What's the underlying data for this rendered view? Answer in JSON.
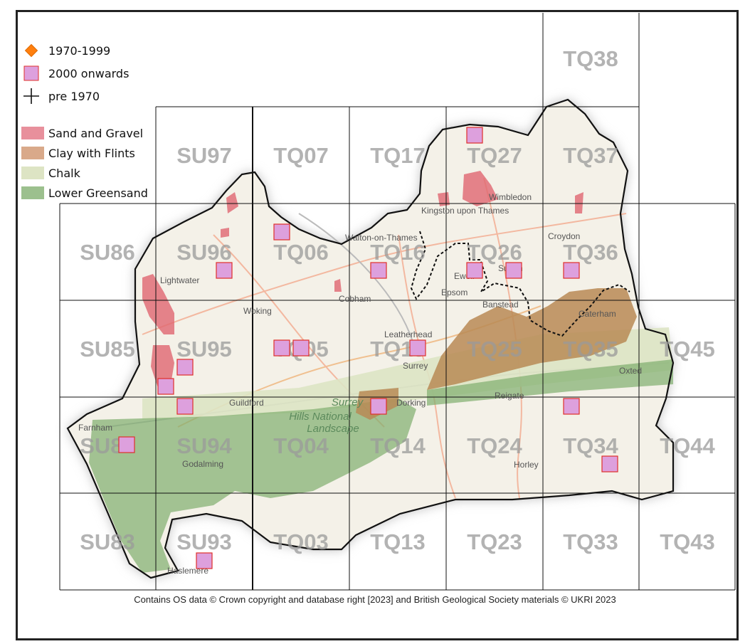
{
  "legend": {
    "points": [
      {
        "label": "1970-1999",
        "symbol": "diamond",
        "color": "#ff7f0e"
      },
      {
        "label": "2000 onwards",
        "symbol": "square",
        "color": "#dda0dd"
      },
      {
        "label": "pre 1970",
        "symbol": "cross",
        "color": "#111111"
      }
    ],
    "geology": [
      {
        "label": "Sand and Gravel",
        "color": "#e8909c"
      },
      {
        "label": "Clay with Flints",
        "color": "#d9a98a"
      },
      {
        "label": "Chalk",
        "color": "#dde4c4"
      },
      {
        "label": "Lower Greensand",
        "color": "#9cc08e"
      }
    ]
  },
  "grid_labels": {
    "row_38": [
      "TQ38"
    ],
    "row_7": [
      "SU97",
      "TQ07",
      "TQ17",
      "TQ27",
      "TQ37"
    ],
    "row_6": [
      "SU86",
      "SU96",
      "TQ06",
      "TQ16",
      "TQ26",
      "TQ36"
    ],
    "row_5": [
      "SU85",
      "SU95",
      "TQ05",
      "TQ15",
      "TQ25",
      "TQ35",
      "TQ45"
    ],
    "row_4": [
      "SU84",
      "SU94",
      "TQ04",
      "TQ14",
      "TQ24",
      "TQ34",
      "TQ44"
    ],
    "row_3": [
      "SU83",
      "SU93",
      "TQ03",
      "TQ13",
      "TQ23",
      "TQ33",
      "TQ43"
    ]
  },
  "places": [
    "Lightwater",
    "Woking",
    "Cobham",
    "Leatherhead",
    "Guildford",
    "Dorking",
    "Reigate",
    "Farnham",
    "Godalming",
    "Haslemere",
    "Horley",
    "Oxted",
    "Croydon",
    "Sutton",
    "Wimbledon",
    "Epsom",
    "Ewell",
    "Banstead",
    "Caterham",
    "Walton-on-Thames",
    "Kingston upon Thames",
    "Surrey"
  ],
  "aonb_label": [
    "Surrey",
    "Hills National",
    "Landscape"
  ],
  "markers_2000_onwards": [
    "TQ27",
    "TQ06",
    "SU96",
    "TQ16",
    "TQ26",
    "TQ26",
    "TQ36",
    "TQ05",
    "TQ05",
    "TQ15",
    "SU95",
    "SU95",
    "SU94",
    "TQ14",
    "TQ34",
    "SU84",
    "TQ34",
    "SU93"
  ],
  "colors": {
    "county_fill": "#f4f1e8",
    "boundary": "#111111",
    "grid": "#111111",
    "marker_stroke": "#e0302a"
  },
  "attribution": "Contains OS data  © Crown copyright and database right [2023] and British Geological Society materials © UKRI 2023"
}
